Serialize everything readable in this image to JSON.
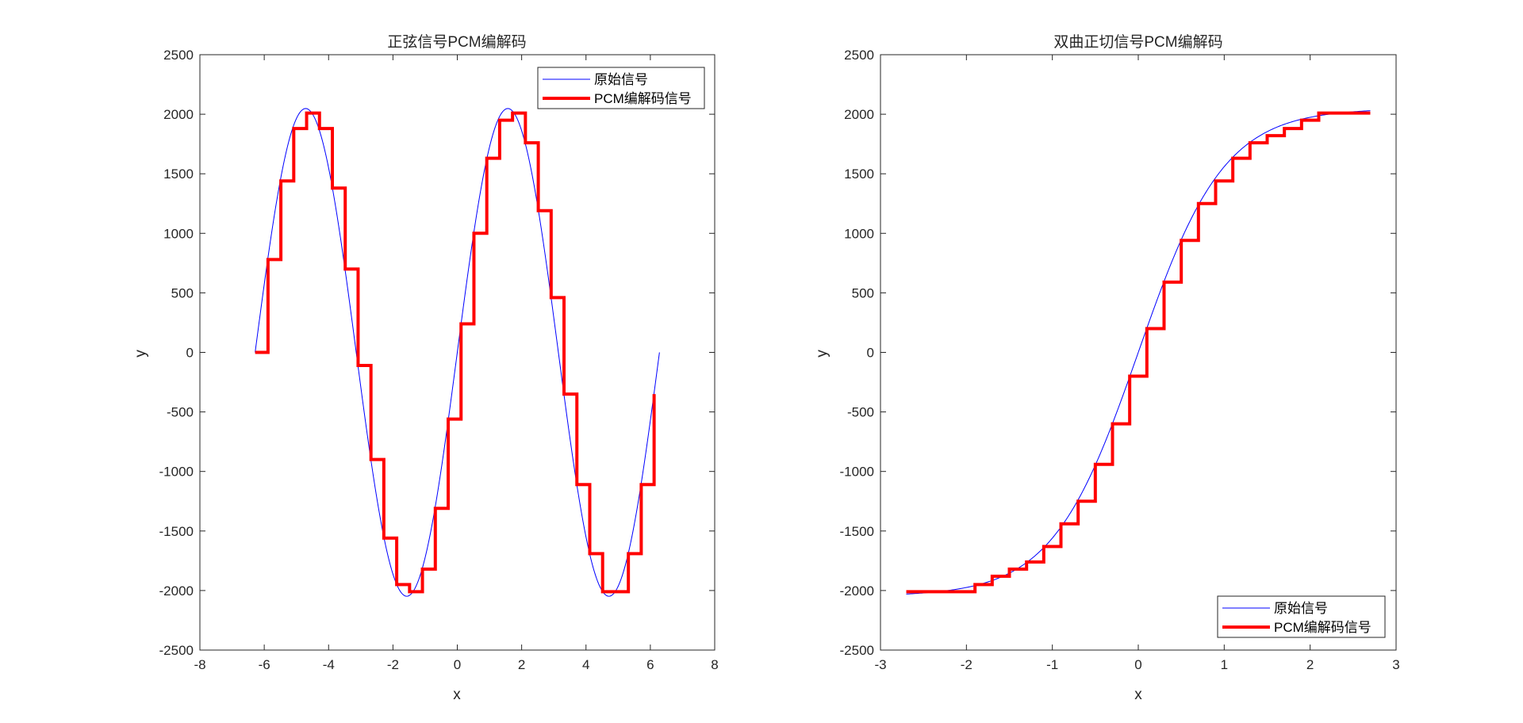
{
  "chart_data": [
    {
      "type": "line",
      "title": "正弦信号PCM编解码",
      "xlabel": "x",
      "ylabel": "y",
      "xlim": [
        -8,
        8
      ],
      "ylim": [
        -2500,
        2500
      ],
      "xticks": [
        -8,
        -6,
        -4,
        -2,
        0,
        2,
        4,
        6,
        8
      ],
      "yticks": [
        -2500,
        -2000,
        -1500,
        -1000,
        -500,
        0,
        500,
        1000,
        1500,
        2000,
        2500
      ],
      "legend_position": "top-right",
      "grid": false,
      "series": [
        {
          "name": "原始信号",
          "style": "line",
          "color": "#0000ff",
          "function": "2048*sin(x)",
          "domain": [
            -6.2832,
            6.2832
          ]
        },
        {
          "name": "PCM编解码信号",
          "style": "stairs",
          "color": "#ff0000",
          "x": [
            -6.2832,
            -5.8832,
            -5.4832,
            -5.0832,
            -4.6832,
            -4.2832,
            -3.8832,
            -3.4832,
            -3.0832,
            -2.6832,
            -2.2832,
            -1.8832,
            -1.4832,
            -1.0832,
            -0.6832,
            -0.2832,
            0.1168,
            0.5168,
            0.9168,
            1.3168,
            1.7168,
            2.1168,
            2.5168,
            2.9168,
            3.3168,
            3.7168,
            4.1168,
            4.5168,
            4.9168,
            5.3168,
            5.7168,
            6.1168
          ],
          "y": [
            0,
            780,
            1440,
            1880,
            2010,
            1880,
            1380,
            700,
            -110,
            -900,
            -1560,
            -1950,
            -2010,
            -1820,
            -1310,
            -560,
            240,
            1000,
            1630,
            1950,
            2010,
            1760,
            1190,
            460,
            -350,
            -1110,
            -1690,
            -2010,
            -2010,
            -1690,
            -1110,
            -350
          ]
        }
      ]
    },
    {
      "type": "line",
      "title": "双曲正切信号PCM编解码",
      "xlabel": "x",
      "ylabel": "y",
      "xlim": [
        -3,
        3
      ],
      "ylim": [
        -2500,
        2500
      ],
      "xticks": [
        -3,
        -2,
        -1,
        0,
        1,
        2,
        3
      ],
      "yticks": [
        -2500,
        -2000,
        -1500,
        -1000,
        -500,
        0,
        500,
        1000,
        1500,
        2000,
        2500
      ],
      "legend_position": "bottom-right",
      "grid": false,
      "series": [
        {
          "name": "原始信号",
          "style": "line",
          "color": "#0000ff",
          "function": "2048*tanh(x)",
          "domain": [
            -2.7,
            2.7
          ]
        },
        {
          "name": "PCM编解码信号",
          "style": "stairs",
          "color": "#ff0000",
          "x": [
            -2.7,
            -1.9,
            -1.7,
            -1.5,
            -1.3,
            -1.1,
            -0.9,
            -0.7,
            -0.5,
            -0.3,
            -0.1,
            0.1,
            0.3,
            0.5,
            0.7,
            0.9,
            1.1,
            1.3,
            1.5,
            1.7,
            1.9,
            2.1,
            2.7
          ],
          "y": [
            -2010,
            -1950,
            -1880,
            -1820,
            -1760,
            -1630,
            -1440,
            -1250,
            -940,
            -600,
            -200,
            200,
            590,
            940,
            1250,
            1440,
            1630,
            1760,
            1820,
            1880,
            1950,
            2010,
            2010
          ]
        }
      ]
    }
  ]
}
